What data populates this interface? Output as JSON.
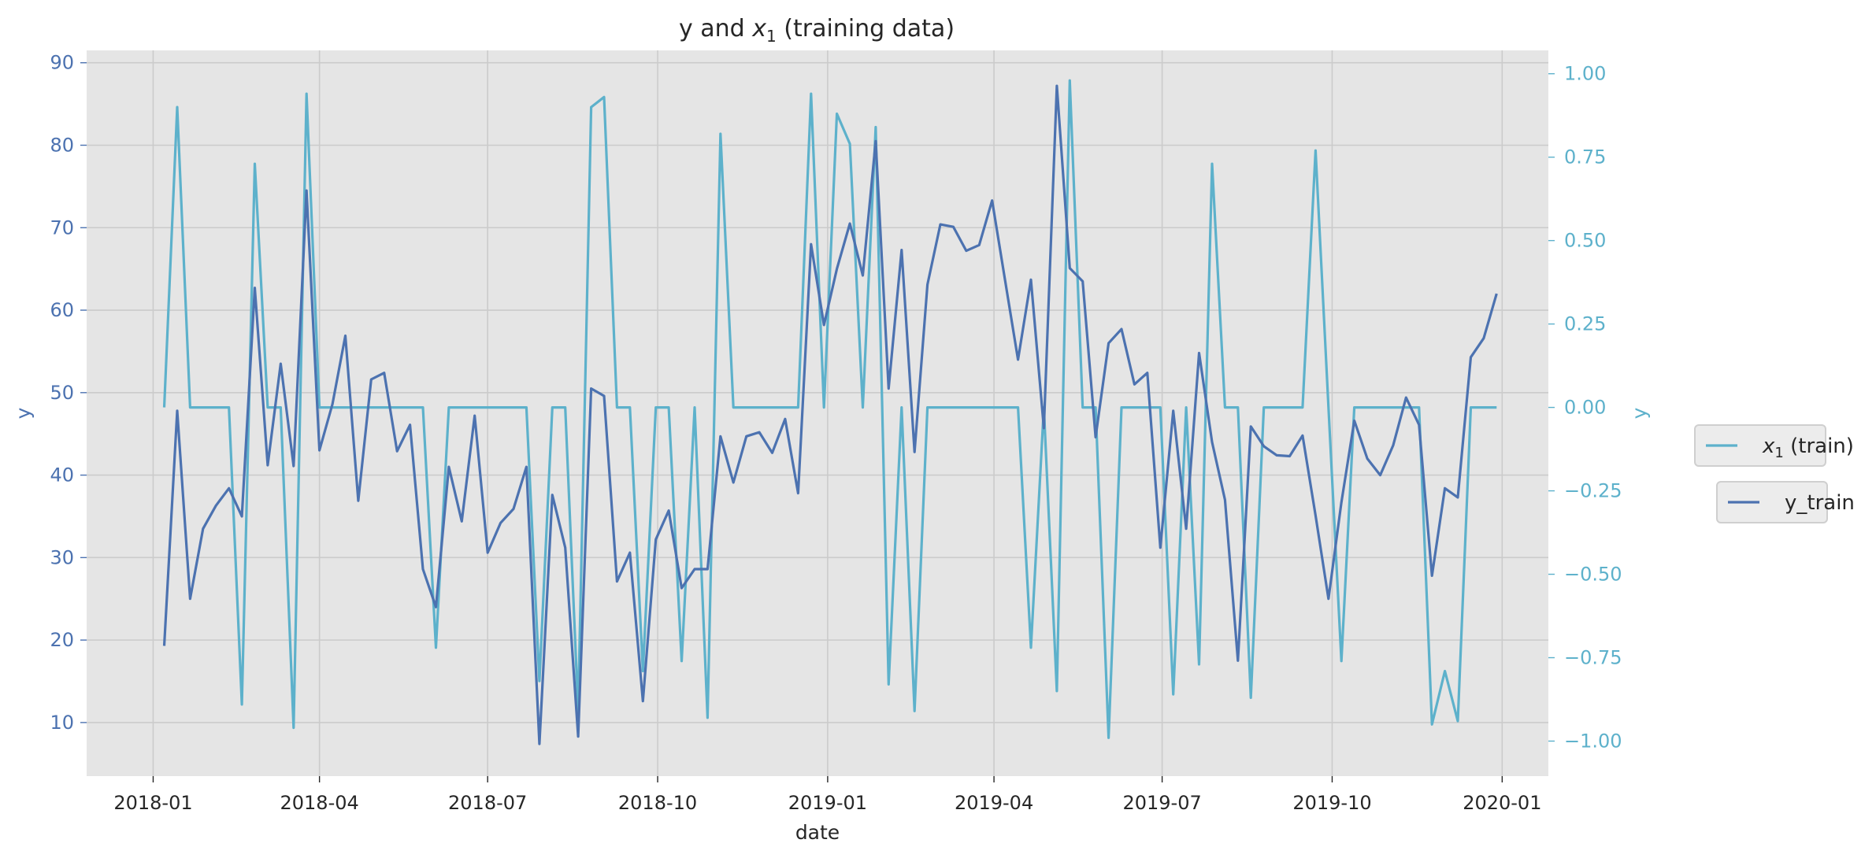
{
  "chart_data": {
    "type": "line",
    "title": "y and x₁ (training data)",
    "xlabel": "date",
    "ylabel_left": "y",
    "ylabel_right": "y",
    "grid": true,
    "legend_placement": "right, outside",
    "colors": {
      "background": "#e5e5e5",
      "grid": "#cbcbcb",
      "y_train": "#4c72b0",
      "x1_train": "#5db1cb",
      "left_axis_text": "#4c72b0",
      "right_axis_text": "#5db1cb",
      "text": "#262626"
    },
    "x_axis": {
      "range": [
        "2017-11-26",
        "2020-01-26"
      ],
      "ticks": [
        "2018-01-01",
        "2018-04-01",
        "2018-07-01",
        "2018-10-01",
        "2019-01-01",
        "2019-04-01",
        "2019-07-01",
        "2019-10-01",
        "2020-01-01"
      ],
      "tick_labels": [
        "2018-01",
        "2018-04",
        "2018-07",
        "2018-10",
        "2019-01",
        "2019-04",
        "2019-07",
        "2019-10",
        "2020-01"
      ]
    },
    "y_left": {
      "range": [
        3.5,
        91.5
      ],
      "ticks": [
        10,
        20,
        30,
        40,
        50,
        60,
        70,
        80,
        90
      ],
      "tick_labels": [
        "10",
        "20",
        "30",
        "40",
        "50",
        "60",
        "70",
        "80",
        "90"
      ]
    },
    "y_right": {
      "range": [
        -1.105,
        1.07
      ],
      "ticks": [
        -1.0,
        -0.75,
        -0.5,
        -0.25,
        0.0,
        0.25,
        0.5,
        0.75,
        1.0
      ],
      "tick_labels": [
        "−1.00",
        "−0.75",
        "−0.50",
        "−0.25",
        "0.00",
        "0.25",
        "0.50",
        "0.75",
        "1.00"
      ]
    },
    "x": [
      "2018-01-07",
      "2018-01-14",
      "2018-01-21",
      "2018-01-28",
      "2018-02-04",
      "2018-02-11",
      "2018-02-18",
      "2018-02-25",
      "2018-03-04",
      "2018-03-11",
      "2018-03-18",
      "2018-03-25",
      "2018-04-01",
      "2018-04-08",
      "2018-04-15",
      "2018-04-22",
      "2018-04-29",
      "2018-05-06",
      "2018-05-13",
      "2018-05-20",
      "2018-05-27",
      "2018-06-03",
      "2018-06-10",
      "2018-06-17",
      "2018-06-24",
      "2018-07-01",
      "2018-07-08",
      "2018-07-15",
      "2018-07-22",
      "2018-07-29",
      "2018-08-05",
      "2018-08-12",
      "2018-08-19",
      "2018-08-26",
      "2018-09-02",
      "2018-09-09",
      "2018-09-16",
      "2018-09-23",
      "2018-09-30",
      "2018-10-07",
      "2018-10-14",
      "2018-10-21",
      "2018-10-28",
      "2018-11-04",
      "2018-11-11",
      "2018-11-18",
      "2018-11-25",
      "2018-12-02",
      "2018-12-09",
      "2018-12-16",
      "2018-12-23",
      "2018-12-30",
      "2019-01-06",
      "2019-01-13",
      "2019-01-20",
      "2019-01-27",
      "2019-02-03",
      "2019-02-10",
      "2019-02-17",
      "2019-02-24",
      "2019-03-03",
      "2019-03-10",
      "2019-03-17",
      "2019-03-24",
      "2019-03-31",
      "2019-04-07",
      "2019-04-14",
      "2019-04-21",
      "2019-04-28",
      "2019-05-05",
      "2019-05-12",
      "2019-05-19",
      "2019-05-26",
      "2019-06-02",
      "2019-06-09",
      "2019-06-16",
      "2019-06-23",
      "2019-06-30",
      "2019-07-07",
      "2019-07-14",
      "2019-07-21",
      "2019-07-28",
      "2019-08-04",
      "2019-08-11",
      "2019-08-18",
      "2019-08-25",
      "2019-09-01",
      "2019-09-08",
      "2019-09-15",
      "2019-09-22",
      "2019-09-29",
      "2019-10-06",
      "2019-10-13",
      "2019-10-20",
      "2019-10-27",
      "2019-11-03",
      "2019-11-10",
      "2019-11-17",
      "2019-11-24",
      "2019-12-01",
      "2019-12-08",
      "2019-12-15",
      "2019-12-22",
      "2019-12-29"
    ],
    "series": [
      {
        "name": "y_train",
        "axis": "left",
        "values": [
          19.3,
          47.8,
          25.0,
          33.5,
          36.3,
          38.4,
          35.0,
          62.7,
          41.2,
          53.5,
          41.1,
          74.5,
          43.0,
          48.6,
          56.9,
          36.9,
          51.6,
          52.4,
          42.9,
          46.1,
          28.6,
          24.0,
          41.0,
          34.4,
          47.2,
          30.6,
          34.2,
          35.9,
          41.0,
          7.4,
          37.6,
          31.2,
          8.3,
          50.5,
          49.6,
          27.1,
          30.6,
          12.6,
          32.2,
          35.7,
          26.3,
          28.6,
          28.6,
          44.7,
          39.1,
          44.7,
          45.2,
          42.7,
          46.8,
          37.8,
          68.0,
          58.2,
          65.0,
          70.5,
          64.2,
          80.5,
          50.5,
          67.3,
          42.8,
          63.1,
          70.4,
          70.1,
          67.2,
          67.9,
          73.3,
          63.6,
          54.0,
          63.7,
          45.7,
          87.2,
          65.1,
          63.5,
          44.6,
          56.0,
          57.7,
          51.0,
          52.4,
          31.2,
          47.8,
          33.5,
          54.8,
          44.0,
          37.0,
          17.5,
          45.9,
          43.5,
          42.4,
          42.3,
          44.8,
          35.1,
          25.0,
          36.7,
          46.6,
          42.0,
          40.0,
          43.6,
          49.4,
          46.1,
          27.8,
          38.4,
          37.3,
          54.3,
          56.6,
          62.0
        ]
      },
      {
        "name": "x₁ (train)",
        "axis": "right",
        "values": [
          0.0,
          0.9,
          0.0,
          0.0,
          0.0,
          0.0,
          -0.89,
          0.73,
          0.0,
          0.0,
          -0.96,
          0.94,
          0.0,
          0.0,
          0.0,
          0.0,
          0.0,
          0.0,
          0.0,
          0.0,
          0.0,
          -0.72,
          0.0,
          0.0,
          0.0,
          0.0,
          0.0,
          0.0,
          0.0,
          -0.82,
          0.0,
          0.0,
          -0.91,
          0.9,
          0.93,
          0.0,
          0.0,
          -0.79,
          0.0,
          0.0,
          -0.76,
          0.0,
          -0.93,
          0.82,
          0.0,
          0.0,
          0.0,
          0.0,
          0.0,
          0.0,
          0.94,
          0.0,
          0.88,
          0.79,
          0.0,
          0.84,
          -0.83,
          0.0,
          -0.91,
          0.0,
          0.0,
          0.0,
          0.0,
          0.0,
          0.0,
          0.0,
          0.0,
          -0.72,
          0.0,
          -0.85,
          0.98,
          0.0,
          0.0,
          -0.99,
          0.0,
          0.0,
          0.0,
          0.0,
          -0.86,
          0.0,
          -0.77,
          0.73,
          0.0,
          0.0,
          -0.87,
          0.0,
          0.0,
          0.0,
          0.0,
          0.77,
          0.0,
          -0.76,
          0.0,
          0.0,
          0.0,
          0.0,
          0.0,
          0.0,
          -0.95,
          -0.79,
          -0.94,
          0.0,
          0.0,
          0.0
        ]
      }
    ],
    "legend": [
      {
        "label": "x",
        "subscript": "1",
        "suffix": " (train)",
        "series": "x₁ (train)"
      },
      {
        "label": "y_train",
        "series": "y_train"
      }
    ]
  }
}
